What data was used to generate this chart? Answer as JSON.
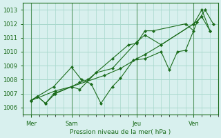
{
  "background_color": "#d8f0ee",
  "grid_color": "#a8d8cc",
  "line_color": "#1a6b1a",
  "text_color": "#1a6b1a",
  "xlabel": "Pression niveau de la mer( hPa )",
  "ylim": [
    1005.5,
    1013.5
  ],
  "yticks": [
    1006,
    1007,
    1008,
    1009,
    1010,
    1011,
    1012,
    1013
  ],
  "day_labels": [
    "Mer",
    "Sam",
    "Jeu",
    "Ven"
  ],
  "day_positions": [
    0.5,
    3.0,
    7.0,
    10.5
  ],
  "xlim": [
    0,
    12
  ],
  "series_x": [
    [
      0.5,
      0.9,
      1.4,
      1.9,
      3.0,
      3.5,
      4.0,
      5.5,
      6.5,
      7.0,
      7.5,
      8.0,
      10.0,
      10.5
    ],
    [
      0.5,
      0.9,
      1.4,
      2.0,
      3.0,
      3.5,
      4.5,
      5.5,
      7.0,
      7.5,
      8.5,
      10.5,
      11.0,
      11.5
    ],
    [
      0.5,
      0.9,
      1.9,
      3.0,
      3.6,
      4.2,
      4.8,
      5.5,
      6.0,
      6.8,
      7.5,
      8.5,
      9.0,
      9.5,
      10.0,
      10.7,
      11.2,
      11.7
    ],
    [
      0.5,
      2.0,
      3.0,
      5.0,
      6.0,
      7.0,
      7.5,
      8.5,
      10.5,
      11.0,
      11.5
    ]
  ],
  "series_y": [
    [
      1006.5,
      1006.8,
      1006.3,
      1007.0,
      1007.5,
      1007.8,
      1008.0,
      1009.5,
      1010.5,
      1010.6,
      1011.5,
      1011.5,
      1012.0,
      1011.5
    ],
    [
      1006.5,
      1006.8,
      1006.3,
      1007.0,
      1007.5,
      1007.3,
      1008.5,
      1008.8,
      1010.7,
      1011.2,
      1010.5,
      1012.0,
      1013.0,
      1011.5
    ],
    [
      1006.5,
      1006.8,
      1007.5,
      1008.9,
      1008.0,
      1007.7,
      1006.3,
      1007.5,
      1008.1,
      1009.4,
      1009.5,
      1010.0,
      1008.7,
      1010.0,
      1010.1,
      1012.1,
      1013.0,
      1012.0
    ],
    [
      1006.5,
      1007.2,
      1007.5,
      1008.3,
      1008.8,
      1009.5,
      1009.8,
      1010.5,
      1012.0,
      1012.5,
      1011.5
    ]
  ]
}
